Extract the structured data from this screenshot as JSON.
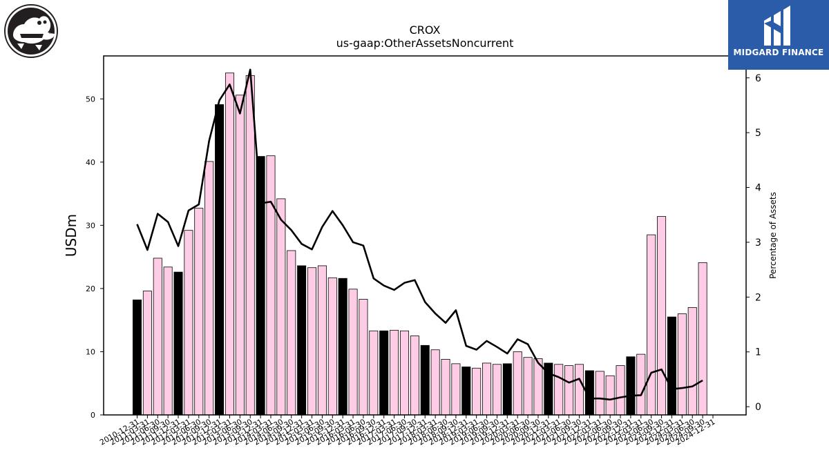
{
  "logos": {
    "left_icon": "crocodile-icon",
    "right_brand": "MIDGARD FINANCE",
    "right_icon": "midgard-m-icon",
    "right_color": "#2a5caa"
  },
  "chart_data": {
    "type": "bar",
    "title": "CROX",
    "subtitle": "us-gaap:OtherAssetsNoncurrent",
    "ylabel": "USDm",
    "y2label": "Percentage of Assets",
    "ylim": [
      0,
      56.8
    ],
    "y2lim": [
      -0.15,
      6.4
    ],
    "yticks": [
      0,
      10,
      20,
      30,
      40,
      50
    ],
    "y2ticks": [
      0,
      1,
      2,
      3,
      4,
      5,
      6
    ],
    "bar_color_q4": "#000000",
    "bar_color_other": "#ffcce6",
    "line_color": "#000000",
    "categories": [
      "2010-12-31",
      "2011-03-31",
      "2011-06-30",
      "2011-09-30",
      "2011-12-31",
      "2012-03-31",
      "2012-06-30",
      "2012-09-30",
      "2012-12-31",
      "2013-03-31",
      "2013-06-30",
      "2013-09-30",
      "2013-12-31",
      "2014-03-31",
      "2014-06-30",
      "2014-09-30",
      "2014-12-31",
      "2015-03-31",
      "2015-06-30",
      "2015-09-30",
      "2015-12-31",
      "2016-03-31",
      "2016-06-30",
      "2016-09-30",
      "2016-12-31",
      "2017-03-31",
      "2017-06-30",
      "2017-09-30",
      "2017-12-31",
      "2018-03-31",
      "2018-06-30",
      "2018-09-30",
      "2018-12-31",
      "2019-03-31",
      "2019-06-30",
      "2019-09-30",
      "2019-12-31",
      "2020-03-31",
      "2020-06-30",
      "2020-09-30",
      "2020-12-31",
      "2021-03-31",
      "2021-06-30",
      "2021-09-30",
      "2021-12-31",
      "2022-03-31",
      "2022-06-30",
      "2022-09-30",
      "2022-12-31",
      "2023-03-31",
      "2023-06-30",
      "2023-09-30",
      "2023-12-31",
      "2024-03-31",
      "2024-06-30",
      "2024-09-30",
      "2024-12-31"
    ],
    "xtick_labels": [
      "2010-12-31",
      "2011-03-31",
      "2011-06-30",
      "2011-09-30",
      "2011-12-31",
      "2012-03-31",
      "2012-06-30",
      "2012-09-30",
      "2012-12-31",
      "2013-03-31",
      "2013-06-30",
      "2013-09-30",
      "2013-12-31",
      "2014-03-31",
      "2014-06-30",
      "2014-09-30",
      "2014-12-31",
      "2015-03-31",
      "2015-06-30",
      "2015-09-30",
      "2015-12-31",
      "2016-03-31",
      "2016-06-30",
      "2016-09-30",
      "2016-12-31",
      "2017-03-31",
      "2017-06-30",
      "2017-09-30",
      "2017-12-31",
      "2018-03-31",
      "2018-06-30",
      "2018-09-30",
      "2018-12-31",
      "2019-03-31",
      "2019-06-30",
      "2019-09-30",
      "2019-12-31",
      "2020-03-31",
      "2020-06-30",
      "2020-09-30",
      "2020-12-31",
      "2021-03-31",
      "2021-06-30",
      "2021-09-30",
      "2021-12-31",
      "2022-03-31",
      "2022-06-30",
      "2022-09-30",
      "2022-12-31",
      "2023-03-31",
      "2023-06-30",
      "2023-09-30",
      "2023-12-31",
      "2024-03-31",
      "2024-06-30",
      "2024-09-30",
      "2024-12-31"
    ],
    "series": [
      {
        "kind": "bar",
        "values": [
          18.2,
          19.6,
          24.8,
          23.4,
          22.6,
          29.2,
          32.7,
          40.1,
          49.1,
          54.1,
          50.6,
          53.7,
          40.9,
          41.0,
          34.2,
          26.0,
          23.6,
          23.3,
          23.6,
          21.7,
          21.6,
          19.9,
          18.3,
          13.3,
          13.3,
          13.4,
          13.3,
          12.5,
          11.0,
          10.3,
          8.8,
          8.1,
          7.6,
          7.4,
          8.2,
          8.0,
          8.1,
          10.0,
          9.1,
          8.9,
          8.2,
          8.0,
          7.8,
          8.0,
          7.0,
          6.9,
          6.2,
          7.8,
          9.2,
          9.6,
          28.5,
          31.4,
          15.5,
          16.0,
          17.0,
          24.1,
          null
        ]
      },
      {
        "kind": "line",
        "axis": "right",
        "values": [
          3.33,
          2.86,
          3.52,
          3.37,
          2.93,
          3.58,
          3.69,
          4.85,
          5.59,
          5.88,
          5.35,
          6.15,
          3.71,
          3.74,
          3.41,
          3.22,
          2.97,
          2.87,
          3.28,
          3.57,
          3.31,
          3.0,
          2.94,
          2.34,
          2.21,
          2.13,
          2.26,
          2.31,
          1.91,
          1.7,
          1.53,
          1.76,
          1.11,
          1.04,
          1.2,
          1.09,
          0.97,
          1.23,
          1.14,
          0.8,
          0.61,
          0.54,
          0.44,
          0.51,
          0.15,
          0.15,
          0.13,
          0.17,
          0.2,
          0.21,
          0.62,
          0.68,
          0.32,
          0.34,
          0.37,
          0.48,
          null
        ]
      }
    ],
    "grid": false,
    "legend": "none"
  }
}
